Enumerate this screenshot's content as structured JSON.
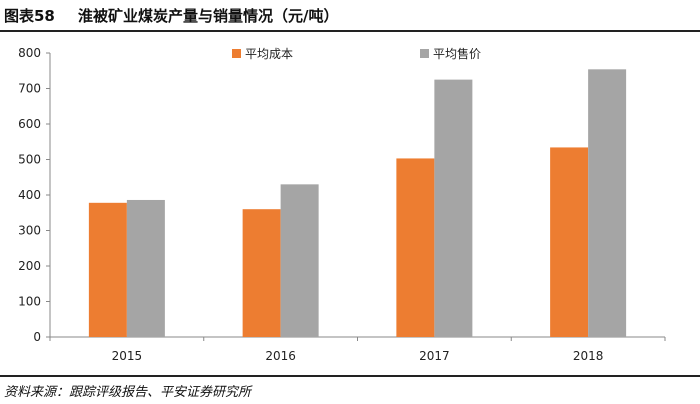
{
  "header": {
    "figure_label": "图表58",
    "title": "淮被矿业煤炭产量与销量情况（元/吨）"
  },
  "footer": {
    "source": "资料来源：跟踪评级报告、平安证券研究所"
  },
  "colors": {
    "cost": "#ED7D31",
    "price": "#A5A5A5",
    "axis": "#888888"
  },
  "chart_data": {
    "type": "bar",
    "categories": [
      "2015",
      "2016",
      "2017",
      "2018"
    ],
    "series": [
      {
        "name": "平均成本",
        "values": [
          378,
          360,
          503,
          534
        ]
      },
      {
        "name": "平均售价",
        "values": [
          386,
          430,
          725,
          754
        ]
      }
    ],
    "ylim": [
      0,
      800
    ],
    "yticks": [
      0,
      100,
      200,
      300,
      400,
      500,
      600,
      700,
      800
    ],
    "grid": false,
    "legend": "top"
  }
}
